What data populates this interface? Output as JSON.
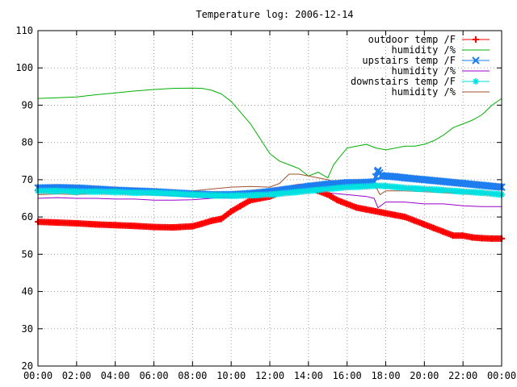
{
  "chart_data": {
    "type": "line",
    "title": "Temperature log: 2006-12-14",
    "xlabel": "",
    "ylabel": "",
    "xlim": [
      0,
      24
    ],
    "ylim": [
      20,
      110
    ],
    "grid": true,
    "legend_position": "top-right",
    "x_ticks": [
      "00:00",
      "02:00",
      "04:00",
      "06:00",
      "08:00",
      "10:00",
      "12:00",
      "14:00",
      "16:00",
      "18:00",
      "20:00",
      "22:00",
      "00:00"
    ],
    "y_ticks": [
      20,
      30,
      40,
      50,
      60,
      70,
      80,
      90,
      100,
      110
    ],
    "series": [
      {
        "name": "outdoor temp /F",
        "color": "#ff0000",
        "marker": "plus",
        "x": [
          0,
          1,
          2,
          3,
          4,
          5,
          6,
          7,
          8,
          8.5,
          9,
          9.5,
          10,
          10.5,
          11,
          11.5,
          12,
          12.5,
          13,
          13.5,
          14,
          14.5,
          15,
          15.5,
          16,
          16.5,
          17,
          17.5,
          18,
          18.5,
          19,
          19.5,
          20,
          20.5,
          21,
          21.5,
          22,
          22.5,
          23,
          23.5,
          24
        ],
        "y": [
          58.7,
          58.5,
          58.3,
          58.0,
          57.8,
          57.6,
          57.3,
          57.2,
          57.5,
          58.2,
          59.0,
          59.5,
          61.5,
          63.0,
          64.5,
          65.0,
          65.5,
          66.5,
          67.5,
          68.0,
          67.8,
          67.0,
          66.0,
          64.5,
          63.5,
          62.5,
          62.0,
          61.5,
          61.0,
          60.5,
          60.0,
          59.0,
          58.0,
          57.0,
          56.0,
          55.0,
          55.0,
          54.5,
          54.3,
          54.2,
          54.2
        ]
      },
      {
        "name": "humidity /%",
        "color": "#00b000",
        "marker": "none",
        "x": [
          0,
          1,
          2,
          3,
          4,
          5,
          6,
          7,
          8,
          8.5,
          9,
          9.5,
          10,
          10.5,
          11,
          11.5,
          12,
          12.5,
          13,
          13.5,
          14,
          14.5,
          15,
          15.3,
          15.6,
          16,
          16.5,
          17,
          17.5,
          18,
          18.5,
          19,
          19.5,
          20,
          20.5,
          21,
          21.5,
          22,
          22.5,
          23,
          23.5,
          24
        ],
        "y": [
          91.8,
          92.0,
          92.2,
          92.8,
          93.3,
          93.8,
          94.2,
          94.5,
          94.6,
          94.5,
          94.0,
          93.0,
          91.0,
          88.0,
          85.0,
          81.0,
          77.0,
          75.0,
          74.0,
          73.0,
          71.0,
          72.0,
          70.5,
          74.0,
          76.0,
          78.5,
          79.0,
          79.5,
          78.5,
          78.0,
          78.5,
          79.0,
          79.0,
          79.5,
          80.5,
          82.0,
          84.0,
          85.0,
          86.0,
          87.5,
          90.0,
          91.8
        ]
      },
      {
        "name": "upstairs temp /F",
        "color": "#1e7ef0",
        "marker": "x",
        "x": [
          0,
          1,
          2,
          3,
          4,
          5,
          6,
          7,
          8,
          9,
          10,
          11,
          12,
          13,
          14,
          15,
          16,
          17,
          17.4,
          17.6,
          17.8,
          18,
          18.5,
          19,
          20,
          21,
          22,
          23,
          24
        ],
        "y": [
          67.8,
          67.9,
          67.8,
          67.5,
          67.2,
          67.0,
          66.8,
          66.5,
          66.2,
          66.0,
          66.0,
          66.3,
          66.8,
          67.5,
          68.2,
          68.8,
          69.2,
          69.3,
          69.4,
          72.5,
          71.0,
          71.0,
          70.8,
          70.5,
          70.0,
          69.5,
          69.0,
          68.5,
          68.0
        ]
      },
      {
        "name": "humidity /%",
        "color": "#9900cc",
        "marker": "none",
        "x": [
          0,
          1,
          2,
          3,
          4,
          5,
          6,
          7,
          8,
          9,
          10,
          11,
          12,
          13,
          14,
          15,
          16,
          17,
          17.4,
          17.6,
          18,
          19,
          20,
          21,
          22,
          23,
          24
        ],
        "y": [
          65.0,
          65.2,
          65.0,
          65.0,
          64.8,
          64.8,
          64.5,
          64.5,
          64.6,
          65.0,
          65.5,
          66.0,
          66.5,
          66.8,
          67.0,
          66.5,
          66.0,
          65.5,
          65.0,
          62.5,
          64.0,
          64.0,
          63.5,
          63.5,
          63.0,
          62.8,
          62.8
        ]
      },
      {
        "name": "downstairs temp /F",
        "color": "#00e0e0",
        "marker": "star",
        "x": [
          0,
          1,
          2,
          3,
          4,
          5,
          6,
          7,
          8,
          9,
          10,
          11,
          12,
          13,
          14,
          15,
          16,
          17,
          17.5,
          18,
          19,
          20,
          21,
          22,
          23,
          24
        ],
        "y": [
          67.0,
          67.0,
          66.8,
          66.8,
          66.7,
          66.5,
          66.5,
          66.3,
          66.0,
          65.8,
          65.7,
          65.8,
          66.0,
          66.5,
          67.0,
          67.5,
          68.0,
          68.2,
          68.4,
          68.3,
          67.8,
          67.5,
          67.2,
          66.8,
          66.5,
          66.0
        ]
      },
      {
        "name": "humidity /%",
        "color": "#a0522d",
        "marker": "none",
        "x": [
          0,
          1,
          2,
          3,
          4,
          5,
          6,
          7,
          8,
          9,
          10,
          11,
          12,
          12.5,
          13,
          13.5,
          14,
          14.5,
          15,
          16,
          17,
          17.5,
          17.7,
          18,
          19,
          20,
          21,
          22,
          23,
          24
        ],
        "y": [
          66.0,
          66.2,
          66.0,
          66.5,
          67.0,
          67.0,
          67.0,
          67.0,
          67.0,
          67.5,
          68.0,
          68.2,
          68.0,
          69.0,
          71.5,
          71.5,
          71.0,
          70.5,
          70.0,
          68.5,
          68.0,
          68.0,
          66.0,
          67.0,
          67.0,
          66.8,
          66.5,
          66.3,
          66.0,
          65.8
        ]
      }
    ]
  }
}
